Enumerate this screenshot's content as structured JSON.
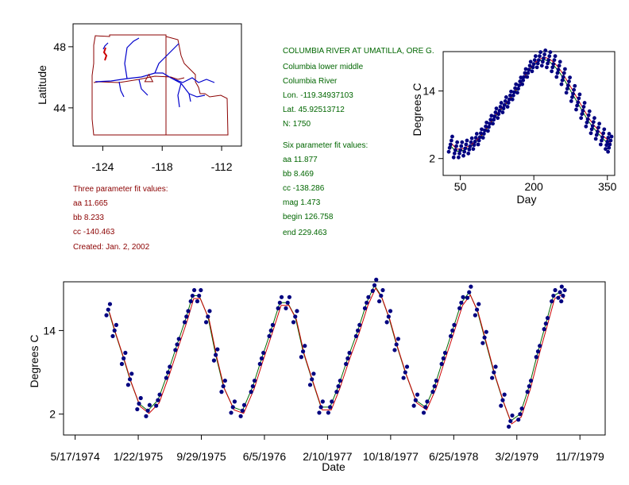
{
  "colors": {
    "map_border": "#8b0000",
    "rivers": "#0000cc",
    "points": "#000080",
    "fit_red": "#cc0000",
    "fit_green": "#006600",
    "info_green": "#006600",
    "info_red": "#8b0000"
  },
  "station_info": {
    "lines": [
      "COLUMBIA RIVER AT UMATILLA, ORE G.",
      "Columbia lower middle",
      "Columbia River",
      "Lon. -119.34937103",
      "Lat. 45.92513712",
      "N: 1750"
    ]
  },
  "six_param": {
    "lines": [
      "Six parameter fit values:",
      "aa 11.877",
      "bb 8.469",
      "cc -138.286",
      "mag 1.473",
      "begin 126.758",
      "end 229.463"
    ]
  },
  "three_param": {
    "lines": [
      "Three parameter fit values:",
      "aa 11.665",
      "bb 8.233",
      "cc -140.463",
      "Created:   Jan. 2, 2002"
    ]
  },
  "chart_data": [
    {
      "id": "map",
      "type": "map",
      "ylabel": "Latitude",
      "xlim": [
        -127,
        -110
      ],
      "ylim": [
        41.5,
        49.5
      ],
      "x_ticks": [
        -124,
        -118,
        -112
      ],
      "x_tick_labels": [
        "-124",
        "-118",
        "-112"
      ],
      "y_ticks": [
        44,
        48
      ],
      "y_tick_labels": [
        "44",
        "48"
      ],
      "station": {
        "lon": -119.34937103,
        "lat": 45.92513712
      }
    },
    {
      "id": "seasonal",
      "type": "scatter",
      "xlabel": "Day",
      "ylabel": "Degrees C",
      "xlim": [
        15,
        365
      ],
      "ylim": [
        -1,
        21
      ],
      "x_ticks": [
        50,
        200,
        350
      ],
      "x_tick_labels": [
        "50",
        "200",
        "350"
      ],
      "y_ticks": [
        2,
        14
      ],
      "y_tick_labels": [
        "2",
        "14"
      ],
      "series": [
        {
          "x": [
            30,
            40,
            50,
            60,
            70,
            80,
            90,
            100,
            110,
            120,
            130,
            140,
            150,
            160,
            170,
            180,
            190,
            200,
            210,
            220,
            230,
            240,
            250,
            260,
            270,
            280,
            290,
            300,
            310,
            320,
            330,
            340,
            350,
            355
          ],
          "y": [
            4.5,
            3.5,
            3.5,
            3.8,
            4.2,
            5.0,
            5.8,
            7.0,
            8.2,
            9.5,
            10.5,
            11.5,
            12.5,
            13.8,
            15.0,
            16.5,
            17.8,
            18.8,
            19.5,
            19.8,
            19.5,
            18.8,
            17.8,
            16.5,
            15.0,
            13.5,
            12.0,
            10.5,
            9.0,
            7.8,
            6.8,
            5.8,
            5.0,
            4.5
          ]
        }
      ]
    },
    {
      "id": "timeseries",
      "type": "scatter",
      "xlabel": "Date",
      "ylabel": "Degrees C",
      "xlim": [
        "1974-04-01",
        "1980-02-15"
      ],
      "ylim": [
        -1,
        21
      ],
      "x_ticks": [
        "1974-05-17",
        "1975-01-22",
        "1975-09-29",
        "1976-06-05",
        "1977-02-10",
        "1977-10-18",
        "1978-06-25",
        "1979-03-02",
        "1979-11-07"
      ],
      "x_tick_labels": [
        "5/17/1974",
        "1/22/1975",
        "9/29/1975",
        "6/5/1976",
        "2/10/1977",
        "10/18/1977",
        "6/25/1978",
        "3/2/1979",
        "11/7/1979"
      ],
      "y_ticks": [
        2,
        14
      ],
      "y_tick_labels": [
        "2",
        "14"
      ],
      "series": [
        {
          "x": [
            "1974-09-25",
            "1974-10-20",
            "1974-11-25",
            "1974-12-20",
            "1975-01-25",
            "1975-03-01",
            "1975-04-10",
            "1975-05-20",
            "1975-06-25",
            "1975-08-01",
            "1975-08-25",
            "1975-09-20",
            "1975-10-25",
            "1975-11-25",
            "1975-12-25",
            "1976-02-01",
            "1976-03-10",
            "1976-04-20",
            "1976-05-25",
            "1976-07-01",
            "1976-08-05",
            "1976-09-05",
            "1976-10-05",
            "1976-11-05",
            "1976-12-10",
            "1977-01-15",
            "1977-02-20",
            "1977-03-25",
            "1977-05-01",
            "1977-06-10",
            "1977-07-15",
            "1977-08-15",
            "1977-09-10",
            "1977-10-10",
            "1977-11-10",
            "1977-12-15",
            "1978-01-25",
            "1978-03-05",
            "1978-04-10",
            "1978-05-15",
            "1978-06-20",
            "1978-07-25",
            "1978-08-25",
            "1978-09-25",
            "1978-10-25",
            "1978-12-01",
            "1979-01-05",
            "1979-02-05",
            "1979-03-15",
            "1979-04-20",
            "1979-05-25",
            "1979-06-25",
            "1979-07-25",
            "1979-08-20",
            "1979-09-01"
          ],
          "y": [
            17.0,
            14.0,
            10.0,
            7.0,
            3.5,
            2.5,
            4.0,
            8.0,
            12.0,
            16.0,
            19.0,
            19.0,
            16.0,
            10.5,
            6.0,
            3.0,
            2.5,
            6.0,
            10.0,
            14.0,
            18.0,
            18.0,
            16.0,
            11.0,
            7.0,
            3.0,
            3.0,
            6.0,
            10.0,
            14.0,
            18.0,
            20.5,
            19.0,
            16.0,
            12.0,
            8.0,
            4.0,
            3.0,
            6.0,
            10.0,
            14.0,
            18.0,
            19.5,
            17.0,
            13.0,
            8.0,
            4.0,
            1.0,
            2.0,
            6.0,
            11.0,
            15.0,
            19.0,
            19.5,
            19.0
          ]
        }
      ]
    }
  ]
}
